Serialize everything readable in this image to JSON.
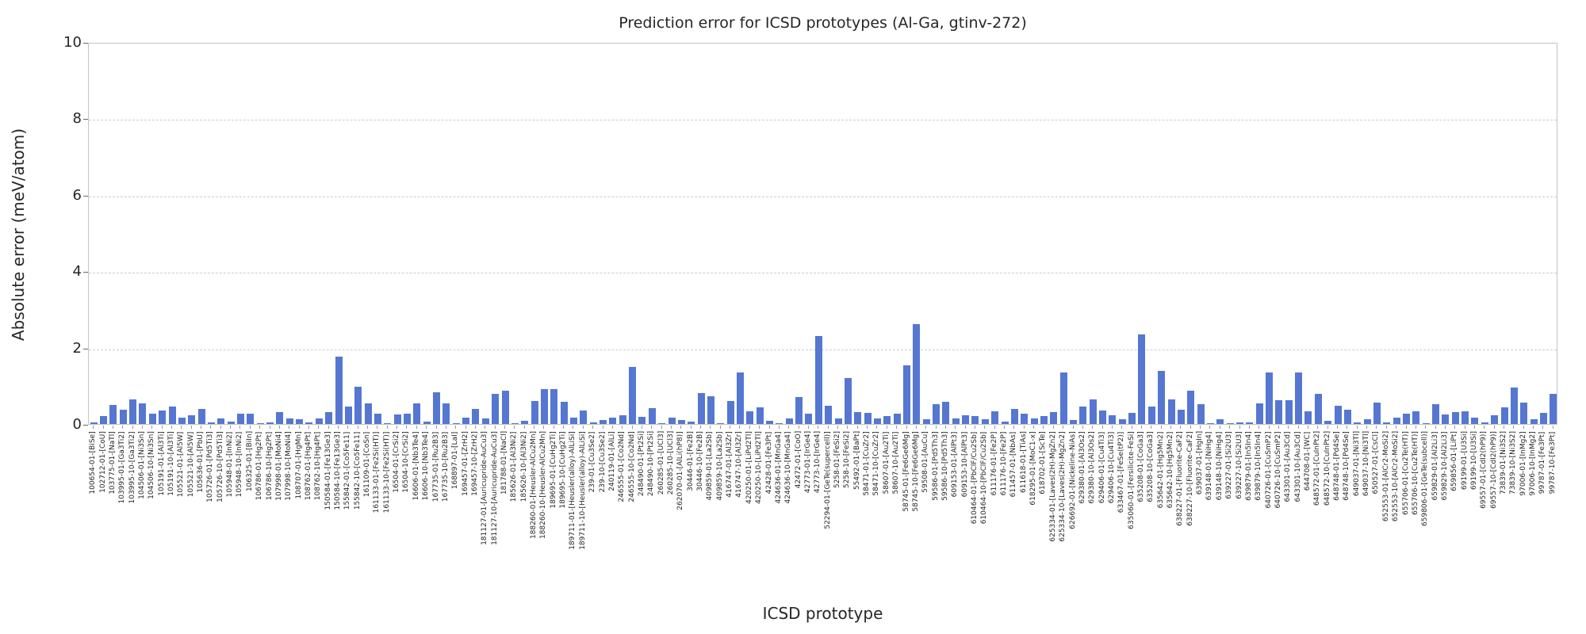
{
  "chart_data": {
    "type": "bar",
    "title": "Prediction error for ICSD prototypes (Al-Ga, gtinv-272)",
    "xlabel": "ICSD prototype",
    "ylabel": "Absolute error (meV/atom)",
    "ylim": [
      0,
      10
    ],
    "yticks": [
      0,
      2,
      4,
      6,
      8,
      10
    ],
    "grid": "horizontal-dashed",
    "legend": "none",
    "bar_color": "#5577d1",
    "categories": [
      "100654-01-[BiSe]",
      "102712-01-[CoU]",
      "103775-01-[NaTl]",
      "103995-01-[Ga3Ti2]",
      "103995-10-[Ga3Ti2]",
      "104506-01-[Ni3Sn]",
      "104506-10-[Ni3Sn]",
      "105191-01-[Al3Ti]",
      "105191-10-[Al3Ti]",
      "105521-01-[Al5W]",
      "105521-10-[Al5W]",
      "105636-01-[PbU]",
      "105726-01-[Pd5Ti3]",
      "105726-10-[Pd5Ti3]",
      "105948-01-[InNi2]",
      "105948-10-[InNi2]",
      "106325-01-[BiIn]",
      "106786-01-[Hg2Pt]",
      "106786-10-[Hg2Pt]",
      "107998-01-[MoNi4]",
      "107998-10-[MoNi4]",
      "108707-01-[HgMn]",
      "108762-01-[Hg4Pt]",
      "108762-10-[Hg4Pt]",
      "150584-01-[Fe13Ge3]",
      "150584-10-[Fe13Ge3]",
      "155842-01-[Co5Fe11]",
      "155842-10-[Co5Fe11]",
      "161109-01-[CoSn]",
      "161133-01-[Fe2Si(HT)]",
      "161133-10-[Fe2Si(HT)]",
      "16504-01-[CrSi2]",
      "16504-10-[CrSi2]",
      "16606-01-[Nb3Te4]",
      "16606-10-[Nb3Te4]",
      "167735-01-[Ru2B3]",
      "167735-10-[Ru2B3]",
      "168897-01-[LaI]",
      "169457-01-[ZrH2]",
      "169457-10-[ZrH2]",
      "181127-01-[Auricupride-AuCu3]",
      "181127-10-[Auricupride-AuCu3]",
      "181788-01-[NaCl]",
      "185626-01-[Al3Ni2]",
      "185626-10-[Al3Ni2]",
      "188260-01-[Heusler-AlCu2Mn]",
      "188260-10-[Heusler-AlCu2Mn]",
      "189695-01-[CuHg2Ti]",
      "189695-10-[CuHg2Ti]",
      "189711-01-[Heusler(alloy)-AlLiSi]",
      "189711-10-[Heusler(alloy)-AlLiSi]",
      "239-01-[Cu3Se2]",
      "239-10-[Cu3Se2]",
      "240119-01-[AlLi]",
      "246555-01-[Co2Nd]",
      "246555-10-[Co2Nd]",
      "248490-01-[Pt2Si]",
      "248490-10-[Pt2Si]",
      "260285-01-[UCl3]",
      "260285-10-[UCl3]",
      "262070-01-[AlLi(hP8)]",
      "30446-01-[Fe2B]",
      "30446-10-[Fe2B]",
      "409859-01-[La2Sb]",
      "409859-10-[La2Sb]",
      "416747-01-[Al3Zr]",
      "416747-10-[Al3Zr]",
      "420250-01-[LiPd2Tl]",
      "420250-10-[LiPd2Tl]",
      "42428-01-[Fe3Pt]",
      "424636-01-[MnGa4]",
      "424636-10-[MnGa4]",
      "42472-01-[CoO]",
      "42773-01-[IrGe4]",
      "42773-10-[IrGe4]",
      "52294-01-[GeTe(supercell)]",
      "5258-01-[FeSi2]",
      "5258-10-[FeSi2]",
      "55492-01-[BaPt]",
      "58471-01-[CuZr2]",
      "58471-10-[CuZr2]",
      "58607-01-[Au2Ti]",
      "58607-10-[Au2Ti]",
      "58745-01-[Fe6Ge6Mg]",
      "58745-10-[Fe6Ge6Mg]",
      "59508-01-[AuCu]",
      "59586-01-[Pd5Th3]",
      "59586-10-[Pd5Th3]",
      "609153-01-[AlPt3]",
      "609153-10-[AlPt3]",
      "610464-01-[PbClF/Cu2Sb]",
      "610464-10-[PbClF/Cu2Sb]",
      "611176-01-[Fe2P]",
      "611176-10-[Fe2P]",
      "611457-01-[NbAs]",
      "611618-01-[TiAs]",
      "618295-01-[MoC1-x]",
      "618702-01-[ScTe]",
      "625334-01-[Laves(2H)-MgZn2]",
      "625334-10-[Laves(2H)-MgZn2]",
      "626692-01-[Nickeline-NiAs]",
      "629380-01-[Al3Os2]",
      "629380-10-[Al3Os2]",
      "629406-01-[Cu4Ti3]",
      "629406-10-[Cu4Ti3]",
      "633467-01-[FeSe(tP2)]",
      "635060-01-[Fersilicite-FeSi]",
      "635208-01-[CoGa3]",
      "635208-10-[CoGa3]",
      "635642-01-[Hg5Mn2]",
      "635642-10-[Hg5Mn2]",
      "638227-01-[Fluorite-CaF2]",
      "638227-10-[Fluorite-CaF2]",
      "639037-01-[HgIn]",
      "639148-01-[NiHg4]",
      "639148-10-[NiHg4]",
      "639227-01-[Si2U3]",
      "639227-10-[Si2U3]",
      "639879-01-[In5In4]",
      "639879-10-[In5In4]",
      "640726-01-[CuSmP2]",
      "640726-10-[CuSmP2]",
      "643301-01-[Au3Cd]",
      "643301-10-[Au3Cd]",
      "644708-01-[WC]",
      "648572-01-[CuInPt2]",
      "648572-10-[CuInPt2]",
      "648748-01-[Pd4Se]",
      "648748-10-[Pd4Se]",
      "649037-01-[Ni3Tl]",
      "649037-10-[Ni3Tl]",
      "650527-01-[CsCl]",
      "652553-01-[AlCr2-MoSi2]",
      "652553-10-[AlCr2-MoSi2]",
      "655706-01-[Cu2Te(HT)]",
      "655706-10-[Cu2Te(HT)]",
      "659806-01-[GeTe(subcell)]",
      "659829-01-[Al2Li3]",
      "659829-10-[Al2Li3]",
      "659856-01-[LiPt]",
      "69199-01-[U3Si]",
      "69199-10-[U3Si]",
      "69557-01-[CdI2(hP9)]",
      "69557-10-[CdI2(hP9)]",
      "73839-01-[Ni3S2]",
      "73839-10-[Ni3S2]",
      "97006-01-[InMg2]",
      "97006-10-[InMg2]",
      "99787-01-[Fe3Pt]",
      "99787-10-[Fe3Pt]"
    ],
    "values": [
      0.04,
      0.2,
      0.5,
      0.38,
      0.65,
      0.55,
      0.28,
      0.35,
      0.45,
      0.17,
      0.22,
      0.4,
      0.05,
      0.15,
      0.06,
      0.28,
      0.28,
      0.03,
      0.05,
      0.31,
      0.15,
      0.13,
      0.04,
      0.15,
      0.31,
      1.76,
      0.45,
      0.97,
      0.53,
      0.26,
      0.03,
      0.24,
      0.26,
      0.53,
      0.06,
      0.83,
      0.53,
      0.01,
      0.17,
      0.4,
      0.14,
      0.78,
      0.88,
      0.02,
      0.08,
      0.6,
      0.92,
      0.92,
      0.59,
      0.17,
      0.35,
      0.04,
      0.1,
      0.17,
      0.22,
      1.49,
      0.18,
      0.41,
      0.02,
      0.17,
      0.1,
      0.06,
      0.81,
      0.73,
      0.02,
      0.61,
      1.35,
      0.33,
      0.43,
      0.08,
      0.03,
      0.14,
      0.71,
      0.27,
      2.31,
      0.48,
      0.15,
      1.21,
      0.31,
      0.29,
      0.15,
      0.2,
      0.28,
      1.53,
      2.62,
      0.12,
      0.51,
      0.58,
      0.14,
      0.22,
      0.21,
      0.12,
      0.33,
      0.07,
      0.4,
      0.26,
      0.15,
      0.21,
      0.31,
      1.35,
      0.1,
      0.45,
      0.64,
      0.36,
      0.22,
      0.12,
      0.29,
      2.35,
      0.45,
      1.4,
      0.65,
      0.38,
      0.88,
      0.51,
      0.03,
      0.12,
      0.03,
      0.05,
      0.05,
      0.55,
      1.35,
      0.62,
      0.63,
      1.35,
      0.33,
      0.78,
      0.08,
      0.47,
      0.38,
      0.04,
      0.12,
      0.56,
      0.05,
      0.17,
      0.26,
      0.33,
      0.02,
      0.51,
      0.24,
      0.31,
      0.33,
      0.17,
      0.04,
      0.22,
      0.43,
      0.95,
      0.56,
      0.12,
      0.29,
      0.78
    ]
  }
}
